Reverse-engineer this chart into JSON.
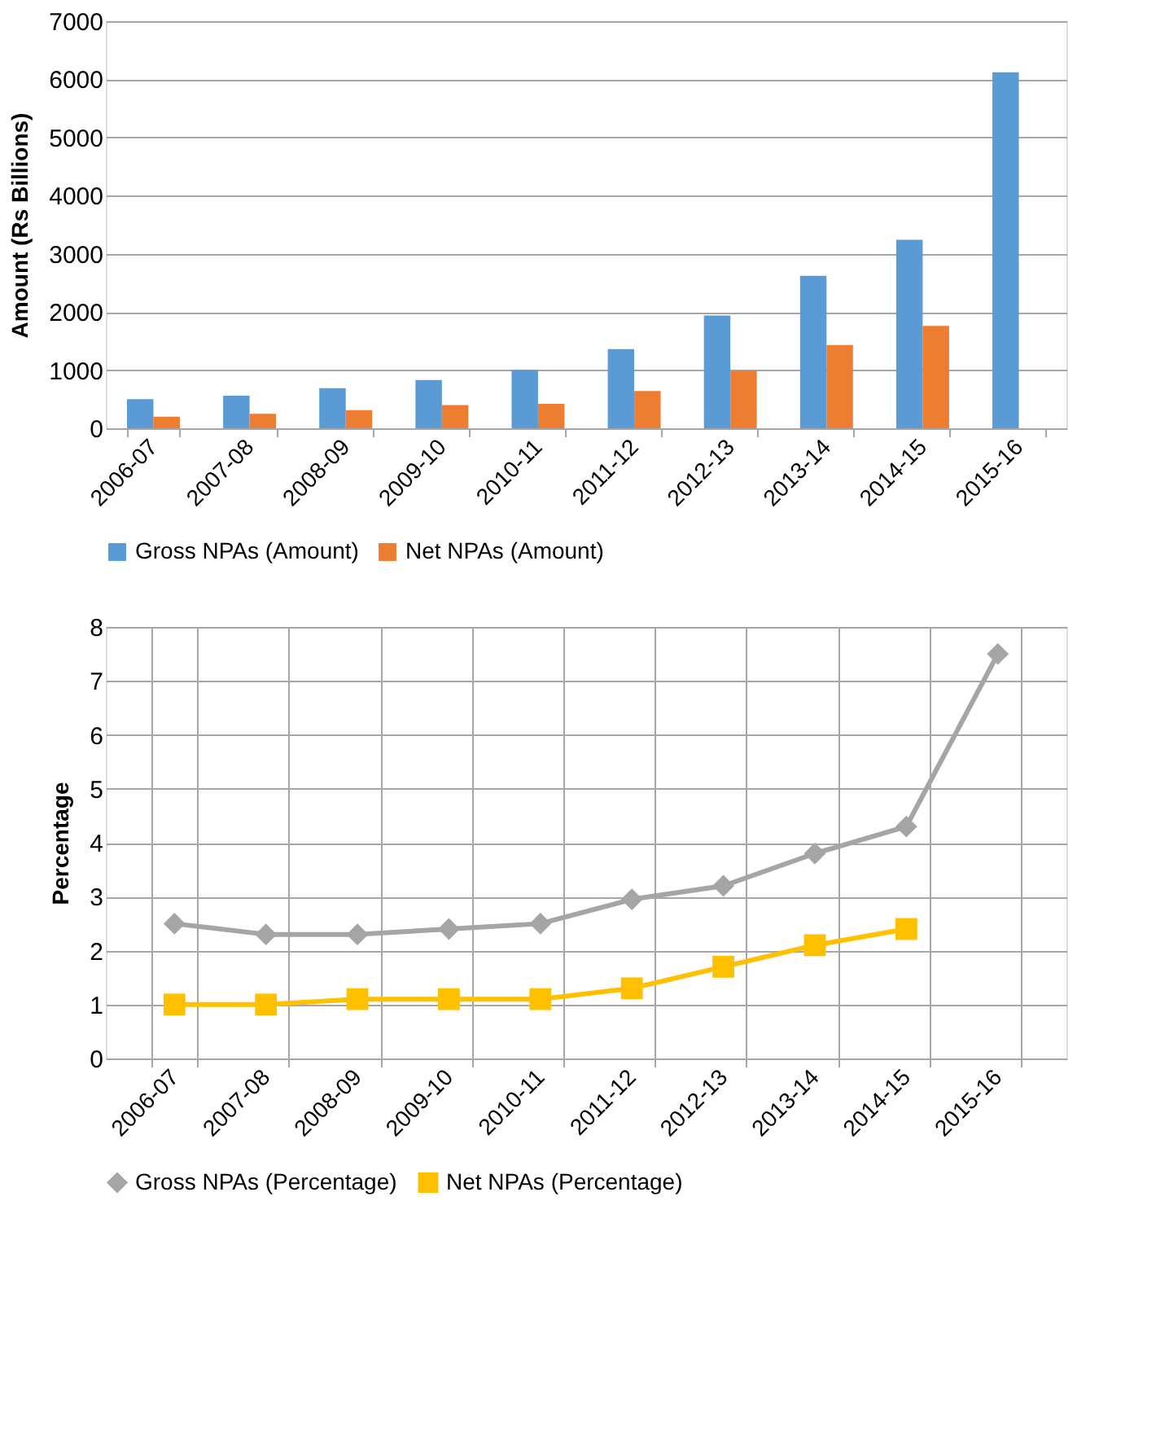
{
  "chart_data": [
    {
      "type": "bar",
      "ylabel": "Amount (Rs Billions)",
      "categories": [
        "2006-07",
        "2007-08",
        "2008-09",
        "2009-10",
        "2010-11",
        "2011-12",
        "2012-13",
        "2013-14",
        "2014-15",
        "2015-16"
      ],
      "series": [
        {
          "name": "Gross NPAs (Amount)",
          "color": "#5b9bd5",
          "values": [
            500,
            560,
            690,
            830,
            1000,
            1360,
            1940,
            2620,
            3240,
            6120
          ]
        },
        {
          "name": "Net NPAs (Amount)",
          "color": "#ed7d31",
          "values": [
            200,
            250,
            310,
            400,
            420,
            640,
            990,
            1430,
            1760,
            null
          ]
        }
      ],
      "ylim": [
        0,
        7000
      ],
      "yticks": [
        0,
        1000,
        2000,
        3000,
        4000,
        5000,
        6000,
        7000
      ],
      "grid": "y",
      "legend": "bottom"
    },
    {
      "type": "line",
      "ylabel": "Percentage",
      "categories": [
        "2006-07",
        "2007-08",
        "2008-09",
        "2009-10",
        "2010-11",
        "2011-12",
        "2012-13",
        "2013-14",
        "2014-15",
        "2015-16"
      ],
      "series": [
        {
          "name": "Gross NPAs (Percentage)",
          "color": "#a5a5a5",
          "marker": "diamond",
          "values": [
            2.5,
            2.3,
            2.3,
            2.4,
            2.5,
            2.95,
            3.2,
            3.8,
            4.3,
            7.5
          ]
        },
        {
          "name": "Net NPAs (Percentage)",
          "color": "#ffc000",
          "marker": "square",
          "values": [
            1.0,
            1.0,
            1.1,
            1.1,
            1.1,
            1.3,
            1.7,
            2.1,
            2.4,
            null
          ]
        }
      ],
      "ylim": [
        0,
        8
      ],
      "yticks": [
        0,
        1,
        2,
        3,
        4,
        5,
        6,
        7,
        8
      ],
      "grid": true,
      "legend": "bottom"
    }
  ]
}
